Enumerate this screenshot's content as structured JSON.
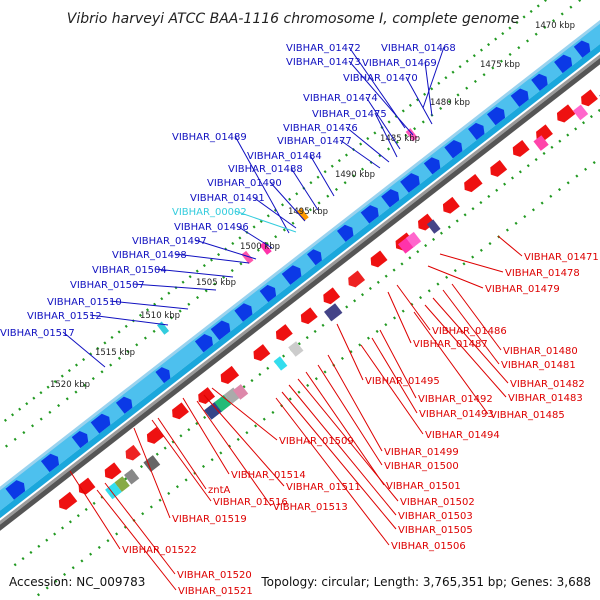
{
  "title": "Vibrio harveyi ATCC BAA-1116 chromosome I, complete genome",
  "footer": {
    "accession": "Accession: NC_009783",
    "summary": "Topology: circular; Length: 3,765,351 bp; Genes: 3,688"
  },
  "colors": {
    "forward_label": "#1010c0",
    "reverse_label": "#dd0000",
    "rna_label": "#33ccdd",
    "ring_light": "#4dc0ee",
    "ring_mid": "#1aa7dc",
    "cds": "#0b39e6",
    "reverse_cds": "#ee1111",
    "tick": "#229922"
  },
  "kbp_ticks": [
    "1470 kbp",
    "1475 kbp",
    "1480 kbp",
    "1485 kbp",
    "1490 kbp",
    "1495 kbp",
    "1500 kbp",
    "1505 kbp",
    "1510 kbp",
    "1515 kbp",
    "1520 kbp"
  ],
  "forward_labels": [
    "VIBHAR_01472",
    "VIBHAR_01473",
    "VIBHAR_01474",
    "VIBHAR_01475",
    "VIBHAR_01476",
    "VIBHAR_01477",
    "VIBHAR_01489",
    "VIBHAR_01484",
    "VIBHAR_01488",
    "VIBHAR_01490",
    "VIBHAR_01491",
    "VIBHAR_00002",
    "VIBHAR_01496",
    "VIBHAR_01497",
    "VIBHAR_01498",
    "VIBHAR_01504",
    "VIBHAR_01507",
    "VIBHAR_01510",
    "VIBHAR_01512",
    "VIBHAR_01517",
    "VIBHAR_01468",
    "VIBHAR_01469",
    "VIBHAR_01470"
  ],
  "reverse_labels": [
    "VIBHAR_01471",
    "VIBHAR_01478",
    "VIBHAR_01479",
    "VIBHAR_01486",
    "VIBHAR_01487",
    "VIBHAR_01480",
    "VIBHAR_01481",
    "VIBHAR_01495",
    "VIBHAR_01482",
    "VIBHAR_01483",
    "VIBHAR_01492",
    "VIBHAR_01493",
    "VIBHAR_01485",
    "VIBHAR_01494",
    "VIBHAR_01509",
    "VIBHAR_01499",
    "VIBHAR_01500",
    "VIBHAR_01514",
    "VIBHAR_01501",
    "VIBHAR_01511",
    "VIBHAR_01502",
    "VIBHAR_01516",
    "VIBHAR_01513",
    "VIBHAR_01503",
    "VIBHAR_01519",
    "VIBHAR_01505",
    "VIBHAR_01506",
    "VIBHAR_01522",
    "VIBHAR_01520",
    "VIBHAR_01521",
    "zntA"
  ]
}
